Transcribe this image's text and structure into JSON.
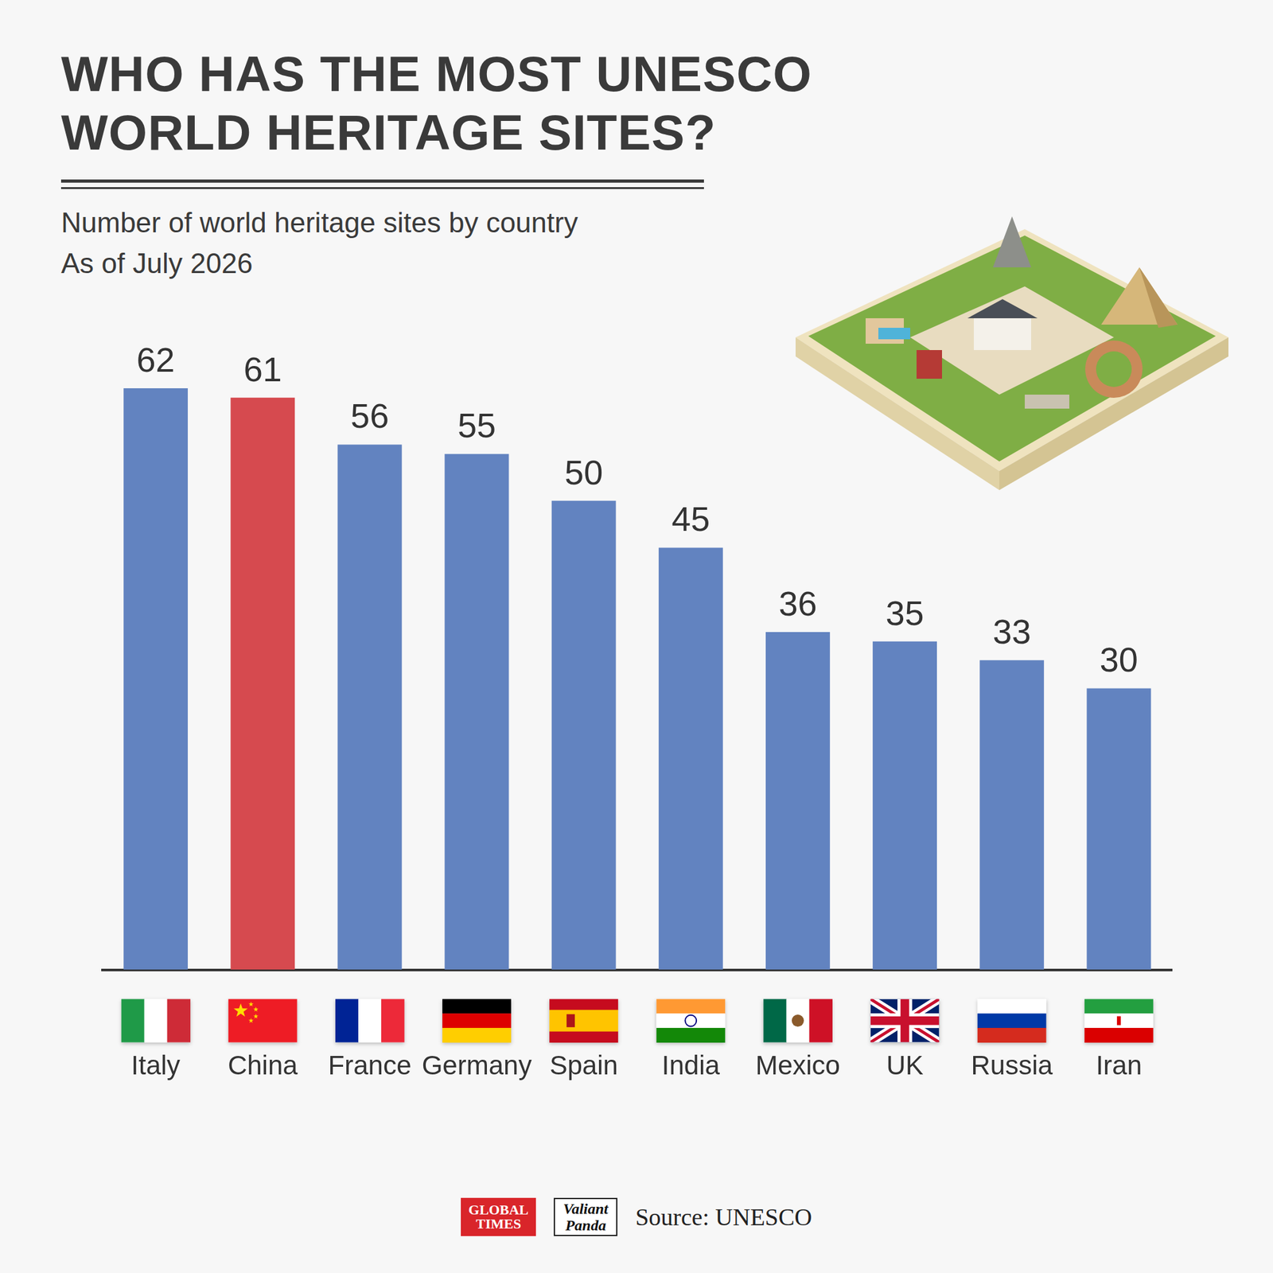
{
  "chart_data": {
    "type": "bar",
    "title": "WHO HAS THE MOST UNESCO WORLD HERITAGE SITES?",
    "subtitle": [
      "Number of world heritage sites by country",
      "As of July 2026"
    ],
    "categories": [
      "Italy",
      "China",
      "France",
      "Germany",
      "Spain",
      "India",
      "Mexico",
      "UK",
      "Russia",
      "Iran"
    ],
    "values": [
      62,
      61,
      56,
      55,
      50,
      45,
      36,
      35,
      33,
      30
    ],
    "colors": [
      "#6283c0",
      "#d64a4f",
      "#6283c0",
      "#6283c0",
      "#6283c0",
      "#6283c0",
      "#6283c0",
      "#6283c0",
      "#6283c0",
      "#6283c0"
    ],
    "ylim": [
      0,
      62
    ],
    "yticks": [
      0,
      62
    ],
    "grid": false,
    "data_labels": true,
    "tick_labels": "x",
    "source": "Source: UNESCO",
    "logos": [
      "GLOBAL TIMES",
      "Valiant Panda"
    ]
  }
}
